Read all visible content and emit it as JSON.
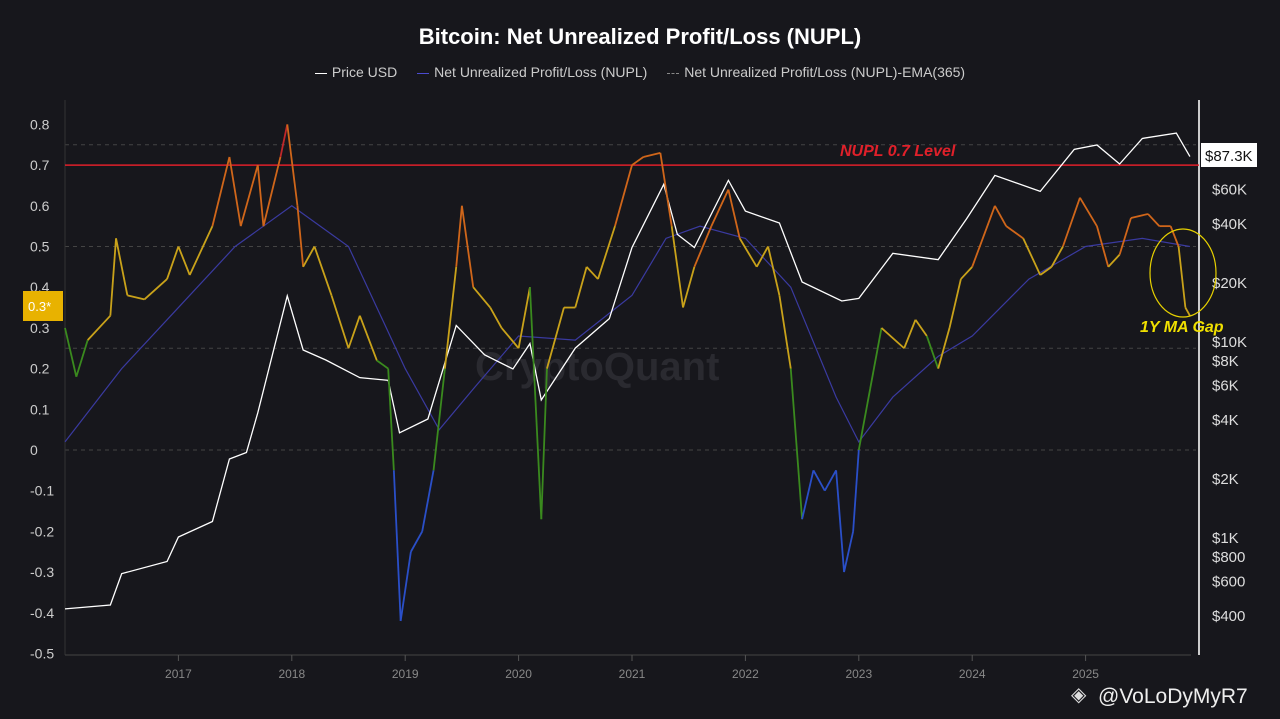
{
  "chart_data": {
    "type": "line",
    "title": "Bitcoin: Net Unrealized Profit/Loss (NUPL)",
    "legend": [
      "Price USD",
      "Net Unrealized Profit/Loss (NUPL)",
      "Net Unrealized Profit/Loss (NUPL)-EMA(365)"
    ],
    "legend_position": "top",
    "x_ticks": [
      "2017",
      "2018",
      "2019",
      "2020",
      "2021",
      "2022",
      "2023",
      "2024",
      "2025"
    ],
    "y_left_ticks": [
      "0.8",
      "0.7",
      "0.6",
      "0.5",
      "0.4",
      "0.3",
      "0.2",
      "0.1",
      "0",
      "-0.1",
      "-0.2",
      "-0.3",
      "-0.4",
      "-0.5"
    ],
    "y_left_range": [
      -0.5,
      0.8
    ],
    "y_right_scale": "log",
    "y_right_ticks": [
      {
        "v": 400,
        "t": "$400"
      },
      {
        "v": 600,
        "t": "$600"
      },
      {
        "v": 800,
        "t": "$800"
      },
      {
        "v": 1000,
        "t": "$1K"
      },
      {
        "v": 2000,
        "t": "$2K"
      },
      {
        "v": 4000,
        "t": "$4K"
      },
      {
        "v": 6000,
        "t": "$6K"
      },
      {
        "v": 8000,
        "t": "$8K"
      },
      {
        "v": 10000,
        "t": "$10K"
      },
      {
        "v": 20000,
        "t": "$20K"
      },
      {
        "v": 40000,
        "t": "$40K"
      },
      {
        "v": 60000,
        "t": "$60K"
      }
    ],
    "current_price_label": "$87.3K",
    "current_nupl_label": "0.3*",
    "reference_line": {
      "value": 0.7,
      "label": "NUPL 0.7 Level",
      "color": "#e0202a"
    },
    "annotation": "1Y MA Gap",
    "watermark": "CryptoQuant",
    "credit": "@VoLoDyMyR7",
    "zone_colors": {
      "capitulation": "#2a4fc8",
      "hope": "#3a8a1e",
      "optimism": "#c9a21a",
      "belief": "#d0661a",
      "euphoria": "#c0282a"
    },
    "nupl": [
      [
        2016.0,
        0.3
      ],
      [
        2016.1,
        0.18
      ],
      [
        2016.2,
        0.27
      ],
      [
        2016.4,
        0.33
      ],
      [
        2016.45,
        0.52
      ],
      [
        2016.55,
        0.38
      ],
      [
        2016.7,
        0.37
      ],
      [
        2016.9,
        0.42
      ],
      [
        2017.0,
        0.5
      ],
      [
        2017.1,
        0.43
      ],
      [
        2017.3,
        0.55
      ],
      [
        2017.45,
        0.72
      ],
      [
        2017.55,
        0.55
      ],
      [
        2017.7,
        0.7
      ],
      [
        2017.75,
        0.55
      ],
      [
        2017.9,
        0.72
      ],
      [
        2017.96,
        0.8
      ],
      [
        2018.05,
        0.6
      ],
      [
        2018.1,
        0.45
      ],
      [
        2018.2,
        0.5
      ],
      [
        2018.35,
        0.38
      ],
      [
        2018.5,
        0.25
      ],
      [
        2018.6,
        0.33
      ],
      [
        2018.75,
        0.22
      ],
      [
        2018.85,
        0.2
      ],
      [
        2018.9,
        -0.05
      ],
      [
        2018.96,
        -0.42
      ],
      [
        2019.05,
        -0.25
      ],
      [
        2019.15,
        -0.2
      ],
      [
        2019.25,
        -0.05
      ],
      [
        2019.35,
        0.2
      ],
      [
        2019.45,
        0.45
      ],
      [
        2019.5,
        0.6
      ],
      [
        2019.6,
        0.4
      ],
      [
        2019.75,
        0.35
      ],
      [
        2019.85,
        0.3
      ],
      [
        2020.0,
        0.25
      ],
      [
        2020.1,
        0.4
      ],
      [
        2020.2,
        -0.17
      ],
      [
        2020.25,
        0.2
      ],
      [
        2020.4,
        0.35
      ],
      [
        2020.5,
        0.35
      ],
      [
        2020.6,
        0.45
      ],
      [
        2020.7,
        0.42
      ],
      [
        2020.85,
        0.55
      ],
      [
        2021.0,
        0.7
      ],
      [
        2021.1,
        0.72
      ],
      [
        2021.25,
        0.73
      ],
      [
        2021.35,
        0.55
      ],
      [
        2021.45,
        0.35
      ],
      [
        2021.55,
        0.45
      ],
      [
        2021.7,
        0.55
      ],
      [
        2021.85,
        0.64
      ],
      [
        2021.95,
        0.52
      ],
      [
        2022.1,
        0.45
      ],
      [
        2022.2,
        0.5
      ],
      [
        2022.3,
        0.38
      ],
      [
        2022.4,
        0.2
      ],
      [
        2022.5,
        -0.17
      ],
      [
        2022.6,
        -0.05
      ],
      [
        2022.7,
        -0.1
      ],
      [
        2022.8,
        -0.05
      ],
      [
        2022.87,
        -0.3
      ],
      [
        2022.95,
        -0.2
      ],
      [
        2023.0,
        0.0
      ],
      [
        2023.1,
        0.15
      ],
      [
        2023.2,
        0.3
      ],
      [
        2023.4,
        0.25
      ],
      [
        2023.5,
        0.32
      ],
      [
        2023.6,
        0.28
      ],
      [
        2023.7,
        0.2
      ],
      [
        2023.8,
        0.3
      ],
      [
        2023.9,
        0.42
      ],
      [
        2024.0,
        0.45
      ],
      [
        2024.2,
        0.6
      ],
      [
        2024.3,
        0.55
      ],
      [
        2024.45,
        0.52
      ],
      [
        2024.6,
        0.43
      ],
      [
        2024.7,
        0.45
      ],
      [
        2024.8,
        0.5
      ],
      [
        2024.95,
        0.62
      ],
      [
        2025.1,
        0.55
      ],
      [
        2025.2,
        0.45
      ],
      [
        2025.3,
        0.48
      ],
      [
        2025.4,
        0.57
      ],
      [
        2025.55,
        0.58
      ],
      [
        2025.65,
        0.55
      ],
      [
        2025.75,
        0.55
      ],
      [
        2025.82,
        0.5
      ],
      [
        2025.88,
        0.35
      ],
      [
        2025.92,
        0.33
      ]
    ],
    "nupl_ema365": [
      [
        2016.0,
        0.02
      ],
      [
        2016.5,
        0.2
      ],
      [
        2017.0,
        0.35
      ],
      [
        2017.5,
        0.5
      ],
      [
        2018.0,
        0.6
      ],
      [
        2018.5,
        0.5
      ],
      [
        2019.0,
        0.2
      ],
      [
        2019.3,
        0.05
      ],
      [
        2019.6,
        0.15
      ],
      [
        2020.0,
        0.28
      ],
      [
        2020.5,
        0.27
      ],
      [
        2021.0,
        0.38
      ],
      [
        2021.3,
        0.52
      ],
      [
        2021.6,
        0.55
      ],
      [
        2022.0,
        0.52
      ],
      [
        2022.4,
        0.4
      ],
      [
        2022.8,
        0.13
      ],
      [
        2023.0,
        0.02
      ],
      [
        2023.3,
        0.13
      ],
      [
        2023.7,
        0.23
      ],
      [
        2024.0,
        0.28
      ],
      [
        2024.5,
        0.42
      ],
      [
        2025.0,
        0.5
      ],
      [
        2025.5,
        0.52
      ],
      [
        2025.92,
        0.5
      ]
    ],
    "price_usd": [
      [
        2016.0,
        430
      ],
      [
        2016.4,
        450
      ],
      [
        2016.5,
        650
      ],
      [
        2016.9,
        750
      ],
      [
        2017.0,
        1000
      ],
      [
        2017.3,
        1200
      ],
      [
        2017.45,
        2500
      ],
      [
        2017.6,
        2700
      ],
      [
        2017.7,
        4300
      ],
      [
        2017.96,
        17000
      ],
      [
        2018.1,
        9000
      ],
      [
        2018.3,
        8000
      ],
      [
        2018.6,
        6500
      ],
      [
        2018.85,
        6300
      ],
      [
        2018.95,
        3400
      ],
      [
        2019.2,
        4000
      ],
      [
        2019.45,
        12000
      ],
      [
        2019.7,
        8500
      ],
      [
        2019.95,
        7200
      ],
      [
        2020.1,
        9700
      ],
      [
        2020.2,
        5000
      ],
      [
        2020.5,
        9200
      ],
      [
        2020.8,
        13000
      ],
      [
        2021.0,
        30000
      ],
      [
        2021.28,
        63000
      ],
      [
        2021.4,
        35000
      ],
      [
        2021.55,
        30000
      ],
      [
        2021.85,
        66000
      ],
      [
        2022.0,
        46000
      ],
      [
        2022.3,
        40000
      ],
      [
        2022.5,
        20000
      ],
      [
        2022.85,
        16000
      ],
      [
        2023.0,
        16500
      ],
      [
        2023.3,
        28000
      ],
      [
        2023.7,
        26000
      ],
      [
        2023.95,
        42000
      ],
      [
        2024.2,
        70000
      ],
      [
        2024.6,
        58000
      ],
      [
        2024.9,
        95000
      ],
      [
        2025.1,
        100000
      ],
      [
        2025.3,
        80000
      ],
      [
        2025.5,
        108000
      ],
      [
        2025.8,
        115000
      ],
      [
        2025.92,
        87300
      ]
    ]
  }
}
